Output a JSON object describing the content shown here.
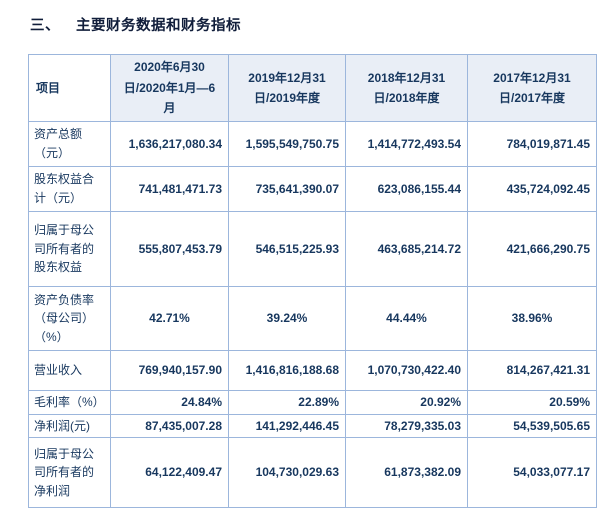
{
  "page": {
    "section_marker": "三、",
    "section_title": "主要财务数据和财务指标"
  },
  "table": {
    "item_header": "项目",
    "period_headers": [
      "2020年6月30日/2020年1月—6月",
      "2019年12月31日/2019年度",
      "2018年12月31日/2018年度",
      "2017年12月31日/2017年度"
    ],
    "rows": [
      {
        "label": "资产总额（元）",
        "values": [
          "1,636,217,080.34",
          "1,595,549,750.75",
          "1,414,772,493.54",
          "784,019,871.45"
        ]
      },
      {
        "label": "股东权益合计（元）",
        "values": [
          "741,481,471.73",
          "735,641,390.07",
          "623,086,155.44",
          "435,724,092.45"
        ]
      },
      {
        "label": "归属于母公司所有者的股东权益",
        "values": [
          "555,807,453.79",
          "546,515,225.93",
          "463,685,214.72",
          "421,666,290.75"
        ]
      },
      {
        "label": "资产负债率（母公司）（%）",
        "values": [
          "42.71%",
          "39.24%",
          "44.44%",
          "38.96%"
        ]
      },
      {
        "label": "营业收入",
        "values": [
          "769,940,157.90",
          "1,416,816,188.68",
          "1,070,730,422.40",
          "814,267,421.31"
        ]
      },
      {
        "label": "毛利率（%）",
        "values": [
          "24.84%",
          "22.89%",
          "20.92%",
          "20.59%"
        ]
      },
      {
        "label": "净利润(元)",
        "values": [
          "87,435,007.28",
          "141,292,446.45",
          "78,279,335.03",
          "54,539,505.65"
        ]
      },
      {
        "label": "归属于母公司所有者的净利润",
        "values": [
          "64,122,409.47",
          "104,730,029.63",
          "61,873,382.09",
          "54,033,077.17"
        ]
      }
    ],
    "colors": {
      "border": "#9cb6dc",
      "text": "#17375e",
      "header_fill": "#e9eef6",
      "title_text": "#101d3a",
      "background": "#ffffff"
    }
  }
}
